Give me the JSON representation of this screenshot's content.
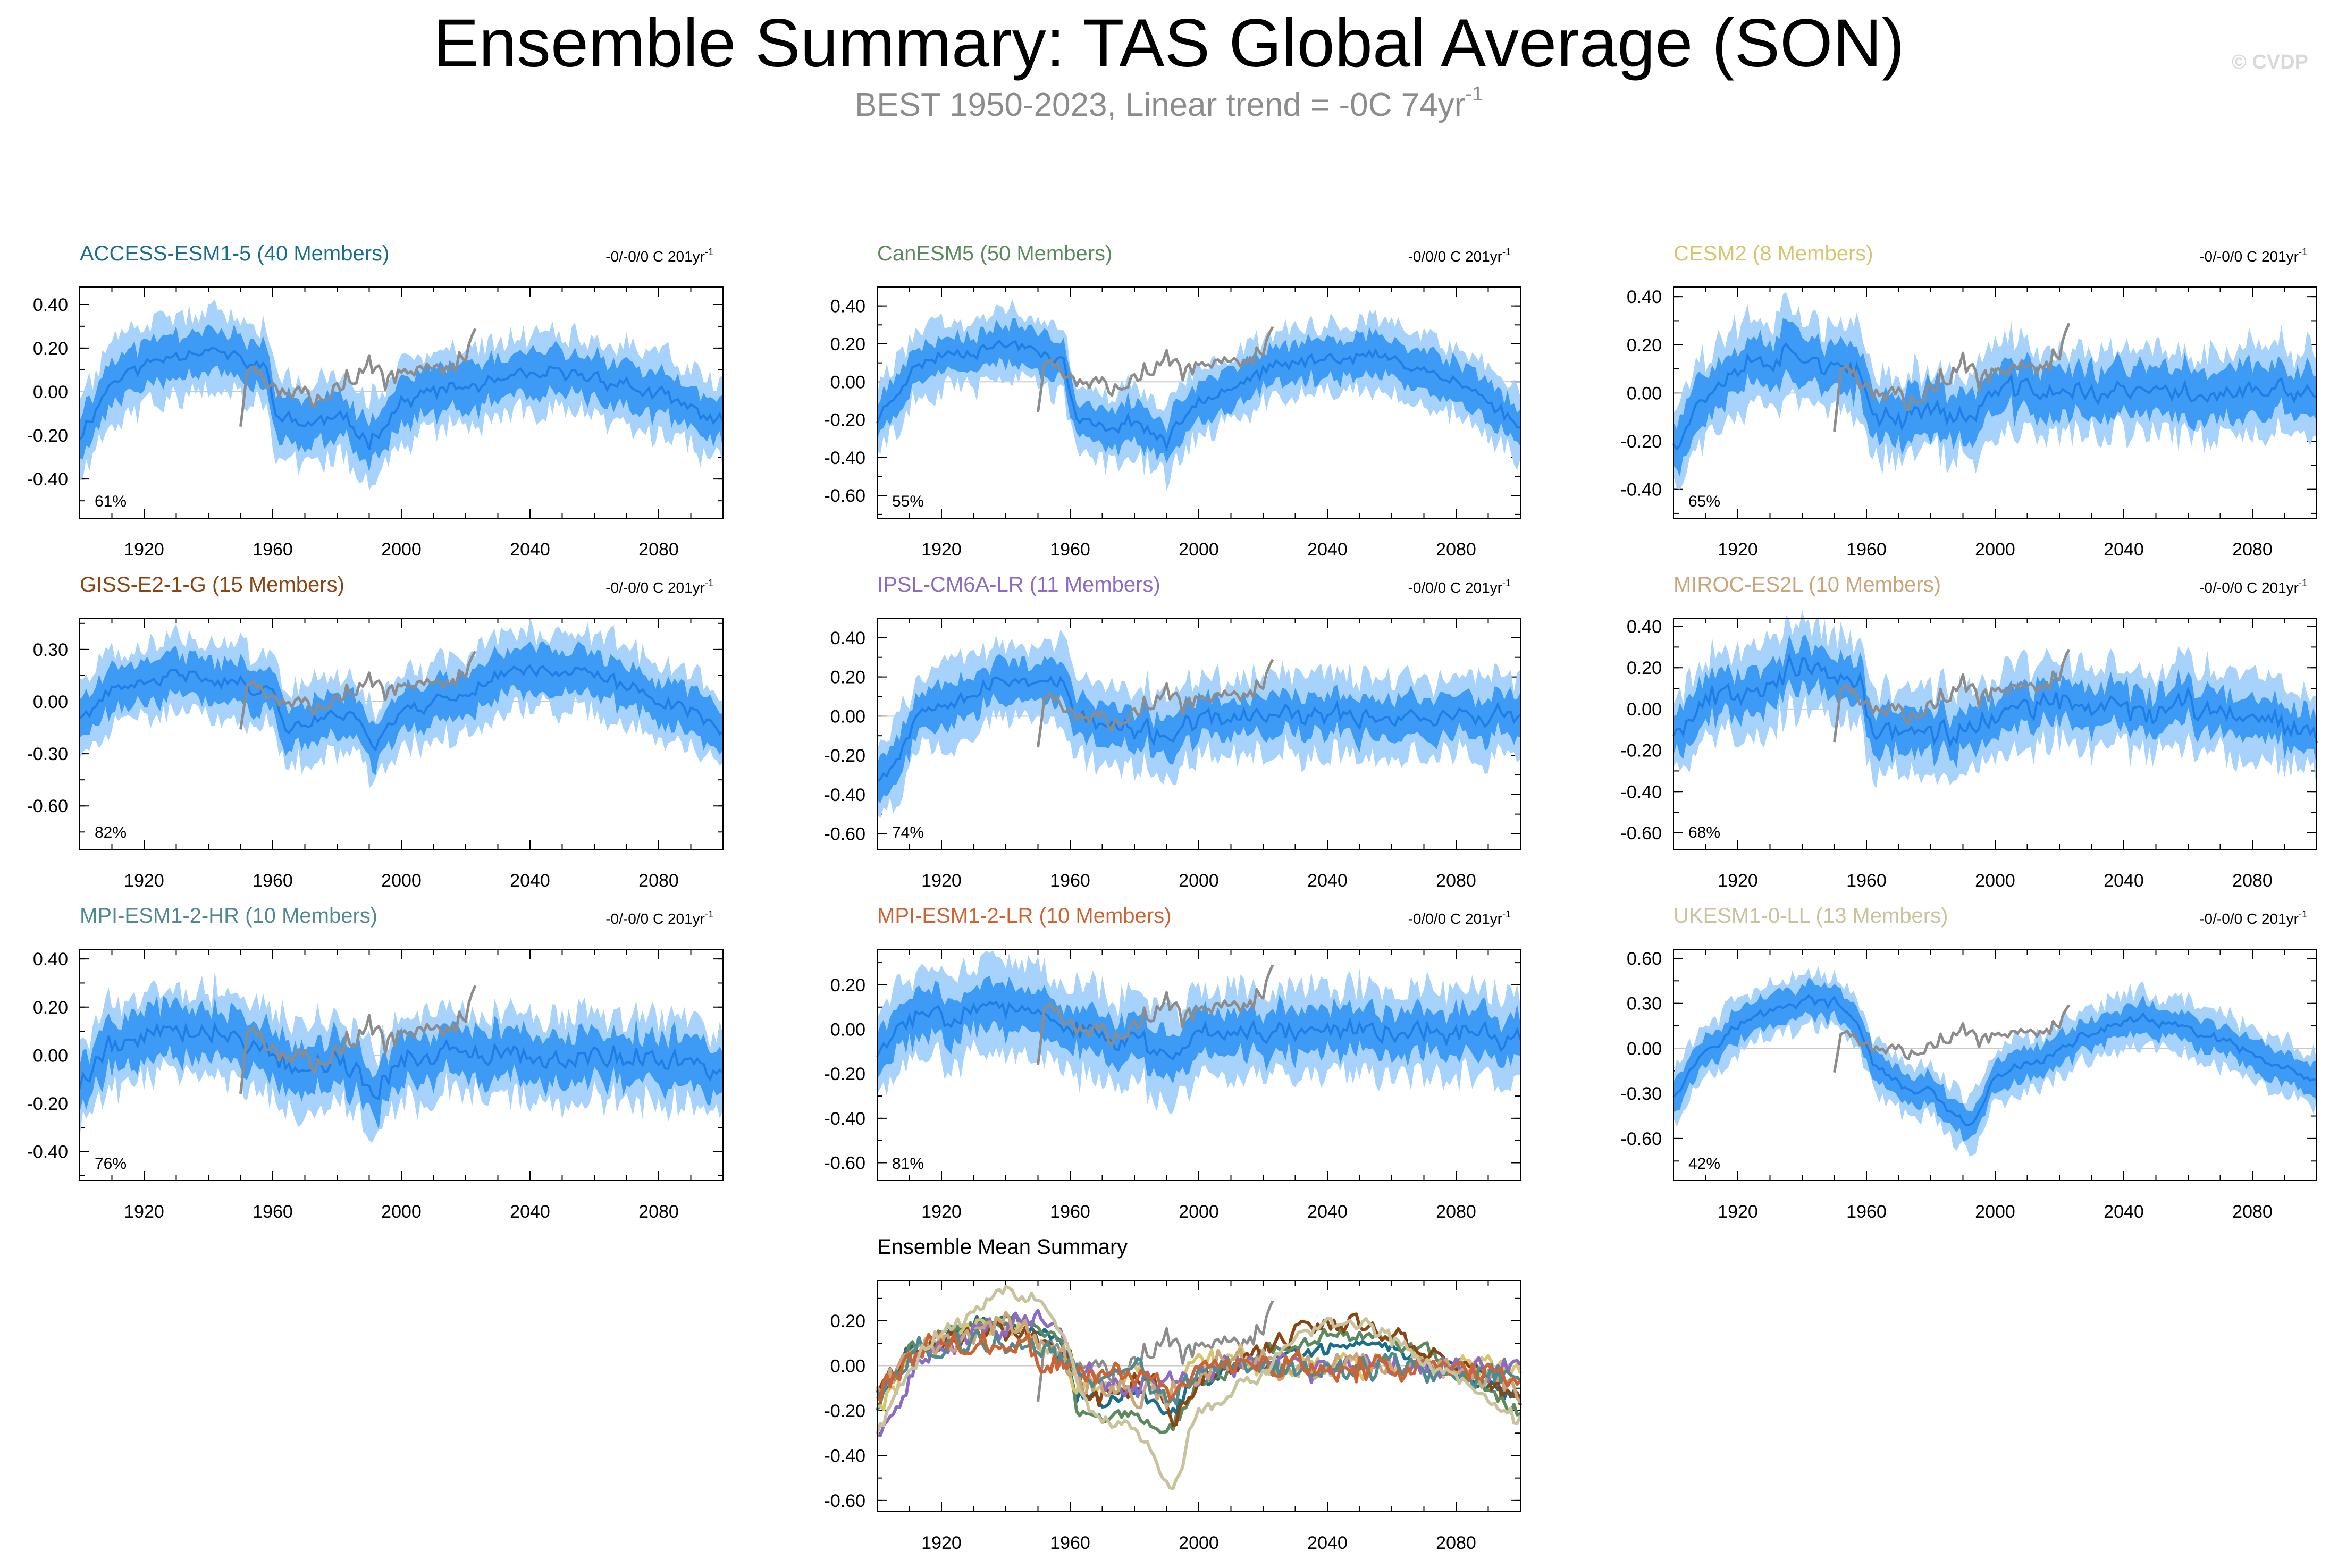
{
  "title": "Ensemble Summary: TAS Global Average (SON)",
  "subtitle": "BEST 1950-2023, Linear trend = -0C 74yr",
  "subtitle_sup": "-1",
  "credit": "© CVDP",
  "colors": {
    "envelope_outer": "#a6d2fc",
    "envelope_inner": "#3d9bf5",
    "ensemble_mean": "#1f7de6",
    "observations": "#8c8c8c",
    "zero_line": "#c8c8c8",
    "axis": "#000000"
  },
  "chart_data": [
    {
      "type": "area",
      "model": "ACCESS-ESM1-5",
      "members": 40,
      "title": "ACCESS-ESM1-5 (40 Members)",
      "trend_label": "-0/-0/0 C 201yr",
      "percent": "61%",
      "title_color": "#186e8c",
      "xlim": [
        1900,
        2100
      ],
      "ylim": [
        -0.58,
        0.48
      ],
      "yticks": [
        0.4,
        0.2,
        0.0,
        -0.2,
        -0.4
      ],
      "ytick_labels": [
        "0.40",
        "0.20",
        "0.00",
        "-0.20",
        "-0.40"
      ],
      "xticks": [
        1920,
        1960,
        2000,
        2040,
        2080
      ],
      "mean_keypoints": [
        [
          1900,
          -0.2
        ],
        [
          1910,
          0.05
        ],
        [
          1920,
          0.12
        ],
        [
          1930,
          0.18
        ],
        [
          1940,
          0.2
        ],
        [
          1950,
          0.14
        ],
        [
          1958,
          0.1
        ],
        [
          1962,
          -0.12
        ],
        [
          1970,
          -0.15
        ],
        [
          1980,
          -0.12
        ],
        [
          1990,
          -0.22
        ],
        [
          2000,
          -0.05
        ],
        [
          2010,
          0.0
        ],
        [
          2020,
          0.02
        ],
        [
          2030,
          0.04
        ],
        [
          2040,
          0.07
        ],
        [
          2050,
          0.08
        ],
        [
          2060,
          0.07
        ],
        [
          2070,
          0.03
        ],
        [
          2080,
          -0.02
        ],
        [
          2090,
          -0.08
        ],
        [
          2100,
          -0.14
        ]
      ],
      "spread_inner": 0.1,
      "spread_outer": 0.18,
      "noise": 0.05,
      "seed": 11
    },
    {
      "type": "area",
      "model": "CanESM5",
      "members": 50,
      "title": "CanESM5 (50 Members)",
      "trend_label": "-0/0/0 C 201yr",
      "percent": "55%",
      "title_color": "#5a8a5e",
      "xlim": [
        1900,
        2100
      ],
      "ylim": [
        -0.72,
        0.5
      ],
      "yticks": [
        0.4,
        0.2,
        0.0,
        -0.2,
        -0.4,
        -0.6
      ],
      "ytick_labels": [
        "0.40",
        "0.20",
        "0.00",
        "-0.20",
        "-0.40",
        "-0.60"
      ],
      "xticks": [
        1920,
        1960,
        2000,
        2040,
        2080
      ],
      "mean_keypoints": [
        [
          1900,
          -0.2
        ],
        [
          1910,
          0.05
        ],
        [
          1920,
          0.15
        ],
        [
          1930,
          0.17
        ],
        [
          1940,
          0.2
        ],
        [
          1950,
          0.18
        ],
        [
          1958,
          0.1
        ],
        [
          1962,
          -0.2
        ],
        [
          1970,
          -0.25
        ],
        [
          1980,
          -0.2
        ],
        [
          1990,
          -0.32
        ],
        [
          2000,
          -0.08
        ],
        [
          2010,
          -0.02
        ],
        [
          2020,
          0.05
        ],
        [
          2030,
          0.1
        ],
        [
          2040,
          0.13
        ],
        [
          2050,
          0.14
        ],
        [
          2060,
          0.12
        ],
        [
          2070,
          0.07
        ],
        [
          2080,
          0.0
        ],
        [
          2090,
          -0.1
        ],
        [
          2100,
          -0.24
        ]
      ],
      "spread_inner": 0.1,
      "spread_outer": 0.18,
      "noise": 0.05,
      "seed": 23
    },
    {
      "type": "area",
      "model": "CESM2",
      "members": 8,
      "title": "CESM2 (8 Members)",
      "trend_label": "-0/-0/0 C 201yr",
      "percent": "65%",
      "title_color": "#d6c56e",
      "xlim": [
        1900,
        2100
      ],
      "ylim": [
        -0.52,
        0.44
      ],
      "yticks": [
        0.4,
        0.2,
        0.0,
        -0.2,
        -0.4
      ],
      "ytick_labels": [
        "0.40",
        "0.20",
        "0.00",
        "-0.20",
        "-0.40"
      ],
      "xticks": [
        1920,
        1960,
        2000,
        2040,
        2080
      ],
      "mean_keypoints": [
        [
          1900,
          -0.2
        ],
        [
          1910,
          0.0
        ],
        [
          1920,
          0.12
        ],
        [
          1930,
          0.15
        ],
        [
          1940,
          0.18
        ],
        [
          1950,
          0.1
        ],
        [
          1958,
          0.05
        ],
        [
          1962,
          -0.08
        ],
        [
          1970,
          -0.1
        ],
        [
          1980,
          -0.05
        ],
        [
          1990,
          -0.12
        ],
        [
          2000,
          0.0
        ],
        [
          2010,
          0.02
        ],
        [
          2020,
          0.0
        ],
        [
          2040,
          0.0
        ],
        [
          2060,
          0.0
        ],
        [
          2080,
          0.0
        ],
        [
          2100,
          0.0
        ]
      ],
      "spread_inner": 0.1,
      "spread_outer": 0.18,
      "noise": 0.07,
      "seed": 37
    },
    {
      "type": "area",
      "model": "GISS-E2-1-G",
      "members": 15,
      "title": "GISS-E2-1-G (15 Members)",
      "trend_label": "-0/-0/0 C 201yr",
      "percent": "82%",
      "title_color": "#8b4513",
      "xlim": [
        1900,
        2100
      ],
      "ylim": [
        -0.85,
        0.48
      ],
      "yticks": [
        0.3,
        0.0,
        -0.3,
        -0.6
      ],
      "ytick_labels": [
        "0.30",
        "0.00",
        "-0.30",
        "-0.60"
      ],
      "xticks": [
        1920,
        1960,
        2000,
        2040,
        2080
      ],
      "mean_keypoints": [
        [
          1900,
          -0.1
        ],
        [
          1910,
          0.05
        ],
        [
          1920,
          0.1
        ],
        [
          1930,
          0.15
        ],
        [
          1940,
          0.15
        ],
        [
          1950,
          0.1
        ],
        [
          1960,
          0.05
        ],
        [
          1965,
          -0.15
        ],
        [
          1975,
          -0.1
        ],
        [
          1985,
          -0.05
        ],
        [
          1992,
          -0.25
        ],
        [
          2000,
          -0.05
        ],
        [
          2010,
          0.0
        ],
        [
          2020,
          0.05
        ],
        [
          2030,
          0.15
        ],
        [
          2040,
          0.2
        ],
        [
          2050,
          0.18
        ],
        [
          2060,
          0.15
        ],
        [
          2070,
          0.08
        ],
        [
          2080,
          0.02
        ],
        [
          2090,
          -0.05
        ],
        [
          2100,
          -0.15
        ]
      ],
      "spread_inner": 0.12,
      "spread_outer": 0.22,
      "noise": 0.06,
      "seed": 41
    },
    {
      "type": "area",
      "model": "IPSL-CM6A-LR",
      "members": 11,
      "title": "IPSL-CM6A-LR (11 Members)",
      "trend_label": "-0/0/0 C 201yr",
      "percent": "74%",
      "title_color": "#8b6bc8",
      "xlim": [
        1900,
        2100
      ],
      "ylim": [
        -0.68,
        0.5
      ],
      "yticks": [
        0.4,
        0.2,
        0.0,
        -0.2,
        -0.4,
        -0.6
      ],
      "ytick_labels": [
        "0.40",
        "0.20",
        "0.00",
        "-0.20",
        "-0.40",
        "-0.60"
      ],
      "xticks": [
        1920,
        1960,
        2000,
        2040,
        2080
      ],
      "mean_keypoints": [
        [
          1900,
          -0.3
        ],
        [
          1905,
          -0.25
        ],
        [
          1912,
          0.0
        ],
        [
          1920,
          0.1
        ],
        [
          1930,
          0.12
        ],
        [
          1940,
          0.18
        ],
        [
          1950,
          0.2
        ],
        [
          1958,
          0.15
        ],
        [
          1962,
          0.0
        ],
        [
          1970,
          -0.05
        ],
        [
          1980,
          -0.08
        ],
        [
          1990,
          -0.1
        ],
        [
          2000,
          -0.03
        ],
        [
          2020,
          0.0
        ],
        [
          2040,
          0.0
        ],
        [
          2060,
          0.0
        ],
        [
          2080,
          0.0
        ],
        [
          2100,
          0.0
        ]
      ],
      "spread_inner": 0.1,
      "spread_outer": 0.2,
      "noise": 0.07,
      "seed": 53
    },
    {
      "type": "area",
      "model": "MIROC-ES2L",
      "members": 10,
      "title": "MIROC-ES2L (10 Members)",
      "trend_label": "-0/-0/0 C 201yr",
      "percent": "68%",
      "title_color": "#c8a57a",
      "xlim": [
        1900,
        2100
      ],
      "ylim": [
        -0.68,
        0.44
      ],
      "yticks": [
        0.4,
        0.2,
        0.0,
        -0.2,
        -0.4,
        -0.6
      ],
      "ytick_labels": [
        "0.40",
        "0.20",
        "0.00",
        "-0.20",
        "-0.40",
        "-0.60"
      ],
      "xticks": [
        1920,
        1960,
        2000,
        2040,
        2080
      ],
      "mean_keypoints": [
        [
          1900,
          -0.1
        ],
        [
          1910,
          0.05
        ],
        [
          1920,
          0.1
        ],
        [
          1930,
          0.15
        ],
        [
          1940,
          0.2
        ],
        [
          1950,
          0.15
        ],
        [
          1958,
          0.1
        ],
        [
          1962,
          -0.1
        ],
        [
          1975,
          -0.1
        ],
        [
          1990,
          -0.12
        ],
        [
          2000,
          -0.02
        ],
        [
          2020,
          0.02
        ],
        [
          2040,
          0.0
        ],
        [
          2060,
          0.0
        ],
        [
          2080,
          -0.02
        ],
        [
          2100,
          -0.1
        ]
      ],
      "spread_inner": 0.1,
      "spread_outer": 0.2,
      "noise": 0.09,
      "seed": 67
    },
    {
      "type": "area",
      "model": "MPI-ESM1-2-HR",
      "members": 10,
      "title": "MPI-ESM1-2-HR (10 Members)",
      "trend_label": "-0/-0/0 C 201yr",
      "percent": "76%",
      "title_color": "#4f8a92",
      "xlim": [
        1900,
        2100
      ],
      "ylim": [
        -0.52,
        0.44
      ],
      "yticks": [
        0.4,
        0.2,
        0.0,
        -0.2,
        -0.4
      ],
      "ytick_labels": [
        "0.40",
        "0.20",
        "0.00",
        "-0.20",
        "-0.40"
      ],
      "xticks": [
        1920,
        1960,
        2000,
        2040,
        2080
      ],
      "mean_keypoints": [
        [
          1900,
          -0.12
        ],
        [
          1910,
          0.05
        ],
        [
          1920,
          0.08
        ],
        [
          1930,
          0.12
        ],
        [
          1940,
          0.1
        ],
        [
          1950,
          0.08
        ],
        [
          1960,
          0.0
        ],
        [
          1970,
          -0.05
        ],
        [
          1980,
          -0.02
        ],
        [
          1992,
          -0.15
        ],
        [
          2000,
          0.0
        ],
        [
          2020,
          0.0
        ],
        [
          2040,
          -0.02
        ],
        [
          2060,
          0.0
        ],
        [
          2080,
          -0.02
        ],
        [
          2100,
          -0.04
        ]
      ],
      "spread_inner": 0.1,
      "spread_outer": 0.18,
      "noise": 0.07,
      "seed": 79
    },
    {
      "type": "area",
      "model": "MPI-ESM1-2-LR",
      "members": 10,
      "title": "MPI-ESM1-2-LR (10 Members)",
      "trend_label": "-0/0/0 C 201yr",
      "percent": "81%",
      "title_color": "#cd6332",
      "xlim": [
        1900,
        2100
      ],
      "ylim": [
        -0.68,
        0.36
      ],
      "yticks": [
        0.2,
        0.0,
        -0.2,
        -0.4,
        -0.6
      ],
      "ytick_labels": [
        "0.20",
        "0.00",
        "-0.20",
        "-0.40",
        "-0.60"
      ],
      "xticks": [
        1920,
        1960,
        2000,
        2040,
        2080
      ],
      "mean_keypoints": [
        [
          1900,
          -0.12
        ],
        [
          1910,
          0.05
        ],
        [
          1920,
          0.08
        ],
        [
          1930,
          0.1
        ],
        [
          1940,
          0.1
        ],
        [
          1950,
          0.05
        ],
        [
          1960,
          0.0
        ],
        [
          1970,
          -0.05
        ],
        [
          1980,
          -0.05
        ],
        [
          1992,
          -0.12
        ],
        [
          2000,
          0.0
        ],
        [
          2020,
          0.0
        ],
        [
          2040,
          0.0
        ],
        [
          2060,
          0.0
        ],
        [
          2080,
          -0.02
        ],
        [
          2100,
          -0.04
        ]
      ],
      "spread_inner": 0.1,
      "spread_outer": 0.2,
      "noise": 0.07,
      "seed": 83
    },
    {
      "type": "area",
      "model": "UKESM1-0-LL",
      "members": 13,
      "title": "UKESM1-0-LL (13 Members)",
      "trend_label": "-0/-0/0 C 201yr",
      "percent": "42%",
      "title_color": "#c8c39c",
      "xlim": [
        1900,
        2100
      ],
      "ylim": [
        -0.88,
        0.66
      ],
      "yticks": [
        0.6,
        0.3,
        0.0,
        -0.3,
        -0.6
      ],
      "ytick_labels": [
        "0.60",
        "0.30",
        "0.00",
        "-0.30",
        "-0.60"
      ],
      "xticks": [
        1920,
        1960,
        2000,
        2040,
        2080
      ],
      "mean_keypoints": [
        [
          1900,
          -0.3
        ],
        [
          1910,
          0.0
        ],
        [
          1920,
          0.15
        ],
        [
          1930,
          0.25
        ],
        [
          1940,
          0.32
        ],
        [
          1950,
          0.3
        ],
        [
          1958,
          0.15
        ],
        [
          1962,
          -0.1
        ],
        [
          1970,
          -0.25
        ],
        [
          1980,
          -0.3
        ],
        [
          1992,
          -0.55
        ],
        [
          2000,
          -0.2
        ],
        [
          2010,
          -0.1
        ],
        [
          2020,
          -0.02
        ],
        [
          2030,
          0.1
        ],
        [
          2040,
          0.18
        ],
        [
          2050,
          0.18
        ],
        [
          2060,
          0.12
        ],
        [
          2070,
          0.05
        ],
        [
          2080,
          -0.05
        ],
        [
          2090,
          -0.15
        ],
        [
          2100,
          -0.25
        ]
      ],
      "spread_inner": 0.1,
      "spread_outer": 0.18,
      "noise": 0.05,
      "seed": 97
    },
    {
      "type": "line",
      "title": "Ensemble Mean Summary",
      "xlim": [
        1900,
        2100
      ],
      "ylim": [
        -0.65,
        0.38
      ],
      "yticks": [
        0.2,
        0.0,
        -0.2,
        -0.4,
        -0.6
      ],
      "ytick_labels": [
        "0.20",
        "0.00",
        "-0.20",
        "-0.40",
        "-0.60"
      ],
      "xticks": [
        1920,
        1960,
        2000,
        2040,
        2080
      ],
      "series": [
        {
          "name": "ACCESS-ESM1-5",
          "color": "#186e8c"
        },
        {
          "name": "CanESM5",
          "color": "#5a8a5e"
        },
        {
          "name": "CESM2",
          "color": "#d6c56e"
        },
        {
          "name": "GISS-E2-1-G",
          "color": "#8b4513"
        },
        {
          "name": "IPSL-CM6A-LR",
          "color": "#8b6bc8"
        },
        {
          "name": "MIROC-ES2L",
          "color": "#c8a57a"
        },
        {
          "name": "MPI-ESM1-2-HR",
          "color": "#4f8a92"
        },
        {
          "name": "MPI-ESM1-2-LR",
          "color": "#cd6332"
        },
        {
          "name": "UKESM1-0-LL",
          "color": "#c8c39c"
        }
      ]
    },
    {
      "type": "line",
      "name": "Observations BEST 1950-2023",
      "role": "observations",
      "color": "#8c8c8c",
      "x_start": 1950,
      "x_end": 2023,
      "keypoints": [
        [
          1950,
          -0.15
        ],
        [
          1952,
          0.1
        ],
        [
          1955,
          0.15
        ],
        [
          1958,
          0.05
        ],
        [
          1962,
          -0.05
        ],
        [
          1966,
          0.0
        ],
        [
          1970,
          -0.02
        ],
        [
          1975,
          0.0
        ],
        [
          1980,
          0.05
        ],
        [
          1985,
          0.08
        ],
        [
          1990,
          0.12
        ],
        [
          1995,
          0.05
        ],
        [
          2000,
          0.1
        ],
        [
          2005,
          0.12
        ],
        [
          2010,
          0.15
        ],
        [
          2015,
          0.12
        ],
        [
          2020,
          0.15
        ],
        [
          2023,
          0.3
        ]
      ],
      "noise": 0.08,
      "seed": 5
    }
  ]
}
